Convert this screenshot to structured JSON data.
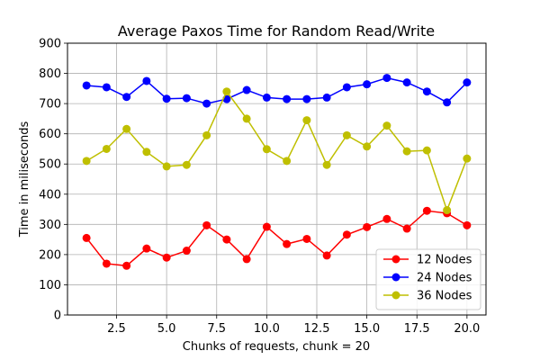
{
  "chart_data": {
    "type": "line",
    "title": "Average Paxos Time for Random Read/Write",
    "xlabel": "Chunks of requests, chunk = 20",
    "ylabel": "Time in miliseconds",
    "xlim": [
      0.05,
      20.95
    ],
    "ylim": [
      0,
      900
    ],
    "x_ticks": [
      2.5,
      5.0,
      7.5,
      10.0,
      12.5,
      15.0,
      17.5,
      20.0
    ],
    "x_tick_labels": [
      "2.5",
      "5.0",
      "7.5",
      "10.0",
      "12.5",
      "15.0",
      "17.5",
      "20.0"
    ],
    "y_ticks": [
      0,
      100,
      200,
      300,
      400,
      500,
      600,
      700,
      800,
      900
    ],
    "y_tick_labels": [
      "0",
      "100",
      "200",
      "300",
      "400",
      "500",
      "600",
      "700",
      "800",
      "900"
    ],
    "grid": true,
    "legend_position": "bottom-right",
    "x": [
      1,
      2,
      3,
      4,
      5,
      6,
      7,
      8,
      9,
      10,
      11,
      12,
      13,
      14,
      15,
      16,
      17,
      18,
      19,
      20
    ],
    "series": [
      {
        "name": "12 Nodes",
        "color": "#ff0000",
        "values": [
          255,
          170,
          163,
          220,
          190,
          213,
          297,
          250,
          185,
          292,
          235,
          252,
          197,
          266,
          291,
          318,
          286,
          345,
          337,
          297
        ]
      },
      {
        "name": "24 Nodes",
        "color": "#0000ff",
        "values": [
          760,
          754,
          722,
          775,
          716,
          718,
          700,
          715,
          745,
          720,
          715,
          715,
          720,
          754,
          764,
          785,
          770,
          740,
          704,
          770
        ]
      },
      {
        "name": "36 Nodes",
        "color": "#bfbf00",
        "values": [
          510,
          550,
          616,
          540,
          492,
          497,
          595,
          740,
          650,
          549,
          510,
          645,
          497,
          595,
          558,
          627,
          542,
          545,
          347,
          518
        ]
      }
    ]
  }
}
